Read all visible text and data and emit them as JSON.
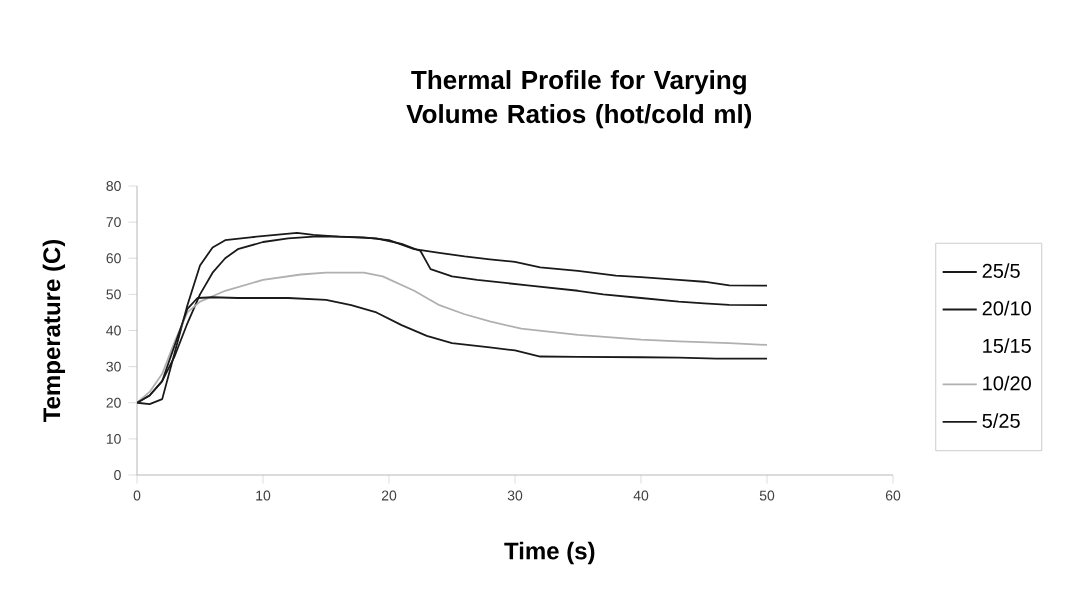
{
  "chart_data": {
    "type": "line",
    "title": "Thermal Profile for Varying Volume Ratios (hot/cold ml)",
    "xlabel": "Time (s)",
    "ylabel": "Temperature (C)",
    "xlim": [
      0,
      60
    ],
    "ylim": [
      0,
      80
    ],
    "xticks": [
      0,
      10,
      20,
      30,
      40,
      50,
      60
    ],
    "yticks": [
      0,
      10,
      20,
      30,
      40,
      50,
      60,
      70,
      80
    ],
    "grid": false,
    "legend": "right",
    "series": [
      {
        "name": "25/5",
        "color": "#1a1a1a",
        "x": [
          0,
          1,
          2,
          3,
          4,
          5,
          6,
          7,
          8,
          10,
          12,
          14,
          16,
          18,
          20,
          22,
          24,
          26,
          28,
          30,
          32,
          35,
          38,
          40,
          43,
          45,
          47,
          50
        ],
        "values": [
          20,
          22,
          26,
          33,
          42,
          50,
          56,
          60,
          62.5,
          64.5,
          65.5,
          66,
          66,
          65.8,
          65,
          62.5,
          61.5,
          60.5,
          59.7,
          59,
          57.5,
          56.5,
          55.2,
          54.8,
          54,
          53.5,
          52.5,
          52.4
        ]
      },
      {
        "name": "20/10",
        "color": "#1a1a1a",
        "x": [
          0,
          1,
          2,
          3,
          4,
          5,
          6,
          7,
          9,
          11,
          12.7,
          14,
          16,
          19,
          21,
          22.5,
          23.3,
          25,
          27,
          31,
          35,
          37,
          40,
          43,
          45,
          47,
          50
        ],
        "values": [
          20,
          19.6,
          21,
          34,
          47,
          58,
          63,
          65,
          65.8,
          66.5,
          67,
          66.5,
          66,
          65.5,
          64,
          62,
          57,
          55,
          54,
          52.5,
          51,
          50,
          49,
          48,
          47.5,
          47.1,
          47
        ]
      },
      {
        "name": "15/15"
      },
      {
        "name": "10/20",
        "color": "#b0b0b0",
        "x": [
          0,
          1,
          2,
          3,
          4,
          5,
          7,
          10,
          13,
          15,
          18,
          19.5,
          22,
          24,
          26,
          28,
          30.5,
          35,
          40,
          43,
          47,
          50
        ],
        "values": [
          20,
          23,
          28,
          37,
          45,
          48,
          51,
          54,
          55.5,
          56,
          56,
          55,
          51,
          47,
          44.5,
          42.5,
          40.5,
          38.8,
          37.5,
          37,
          36.5,
          36
        ]
      },
      {
        "name": "5/25",
        "color": "#1a1a1a",
        "x": [
          0,
          1,
          2,
          3,
          4,
          4.8,
          6,
          8,
          12,
          15,
          17,
          19,
          21,
          23,
          25,
          28,
          30,
          32,
          35,
          40,
          43,
          46,
          50
        ],
        "values": [
          20,
          22,
          26,
          36,
          46,
          49,
          49.2,
          49,
          49,
          48.5,
          47,
          45,
          41.5,
          38.5,
          36.5,
          35.3,
          34.5,
          32.8,
          32.7,
          32.6,
          32.5,
          32.2,
          32.2
        ]
      }
    ]
  }
}
